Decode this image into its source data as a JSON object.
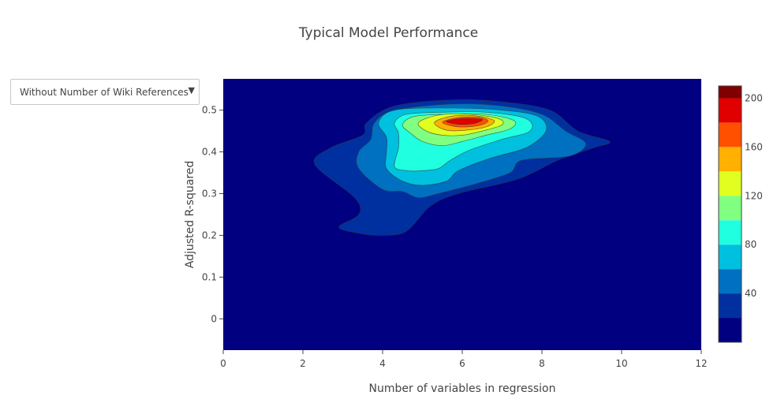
{
  "title": "Typical Model Performance",
  "dropdown": {
    "selected": "Without Number of Wiki References",
    "caret": "▼",
    "icon": "caret-down-icon"
  },
  "chart_data": {
    "type": "contour",
    "title": "Typical Model Performance",
    "xlabel": "Number of variables in regression",
    "ylabel": "Adjusted R-squared",
    "xlim": [
      0,
      12
    ],
    "ylim": [
      -0.075,
      0.575
    ],
    "x_ticks": [
      "0",
      "2",
      "4",
      "6",
      "8",
      "10",
      "12"
    ],
    "y_ticks": [
      "0",
      "0.1",
      "0.2",
      "0.3",
      "0.4",
      "0.5"
    ],
    "x_tick_values": [
      0,
      2,
      4,
      6,
      8,
      10,
      12
    ],
    "y_tick_values": [
      0,
      0.1,
      0.2,
      0.3,
      0.4,
      0.5
    ],
    "colorscale": "Jet",
    "colorbar": {
      "ticks": [
        "40",
        "80",
        "120",
        "160",
        "200"
      ],
      "tick_values": [
        40,
        80,
        120,
        160,
        200
      ],
      "range": [
        0,
        210
      ],
      "levels": [
        0,
        20,
        40,
        60,
        80,
        100,
        120,
        140,
        160,
        180,
        200,
        210
      ],
      "colors": [
        "#000080",
        "#0030a0",
        "#0070c0",
        "#00c0e0",
        "#20ffe0",
        "#80ff80",
        "#e0ff20",
        "#ffb000",
        "#ff5000",
        "#e00000",
        "#800000"
      ]
    },
    "contours": [
      {
        "level": 20,
        "color": "#0030a0",
        "points": [
          [
            2.9,
            0.22
          ],
          [
            3.4,
            0.25
          ],
          [
            3.3,
            0.29
          ],
          [
            2.3,
            0.37
          ],
          [
            2.7,
            0.41
          ],
          [
            3.5,
            0.44
          ],
          [
            3.6,
            0.47
          ],
          [
            4.3,
            0.51
          ],
          [
            5.8,
            0.525
          ],
          [
            7,
            0.52
          ],
          [
            8.2,
            0.5
          ],
          [
            8.9,
            0.45
          ],
          [
            9.7,
            0.425
          ],
          [
            9.3,
            0.41
          ],
          [
            8.4,
            0.38
          ],
          [
            7.4,
            0.335
          ],
          [
            5.9,
            0.3
          ],
          [
            5.2,
            0.27
          ],
          [
            4.6,
            0.21
          ],
          [
            4,
            0.2
          ],
          [
            3.4,
            0.205
          ]
        ]
      },
      {
        "level": 40,
        "color": "#0070c0",
        "points": [
          [
            3.4,
            0.36
          ],
          [
            3.4,
            0.4
          ],
          [
            3.7,
            0.43
          ],
          [
            3.8,
            0.47
          ],
          [
            4.3,
            0.5
          ],
          [
            5.8,
            0.515
          ],
          [
            7,
            0.51
          ],
          [
            8,
            0.49
          ],
          [
            8.6,
            0.45
          ],
          [
            9.1,
            0.42
          ],
          [
            8.7,
            0.39
          ],
          [
            7.5,
            0.38
          ],
          [
            7.2,
            0.35
          ],
          [
            6.4,
            0.325
          ],
          [
            5.4,
            0.3
          ],
          [
            4.9,
            0.29
          ],
          [
            4.5,
            0.305
          ],
          [
            4,
            0.31
          ]
        ]
      },
      {
        "level": 60,
        "color": "#00c0e0",
        "points": [
          [
            4.1,
            0.36
          ],
          [
            4.1,
            0.4
          ],
          [
            4.1,
            0.435
          ],
          [
            3.9,
            0.47
          ],
          [
            4.3,
            0.5
          ],
          [
            5.6,
            0.505
          ],
          [
            7,
            0.5
          ],
          [
            7.9,
            0.485
          ],
          [
            8.1,
            0.45
          ],
          [
            7.6,
            0.41
          ],
          [
            6.7,
            0.385
          ],
          [
            5.9,
            0.355
          ],
          [
            5.6,
            0.33
          ],
          [
            5,
            0.32
          ],
          [
            4.5,
            0.33
          ]
        ]
      },
      {
        "level": 80,
        "color": "#20ffe0",
        "points": [
          [
            4.3,
            0.365
          ],
          [
            4.4,
            0.41
          ],
          [
            4.4,
            0.445
          ],
          [
            4.3,
            0.47
          ],
          [
            4.6,
            0.49
          ],
          [
            5.5,
            0.495
          ],
          [
            6.6,
            0.495
          ],
          [
            7.6,
            0.48
          ],
          [
            7.7,
            0.45
          ],
          [
            7,
            0.43
          ],
          [
            6.2,
            0.405
          ],
          [
            5.7,
            0.38
          ],
          [
            5.4,
            0.36
          ],
          [
            5,
            0.355
          ],
          [
            4.6,
            0.355
          ]
        ]
      },
      {
        "level": 100,
        "color": "#80ff80",
        "points": [
          [
            4.5,
            0.465
          ],
          [
            4.8,
            0.485
          ],
          [
            5.6,
            0.49
          ],
          [
            6.6,
            0.49
          ],
          [
            7.3,
            0.475
          ],
          [
            7.2,
            0.455
          ],
          [
            6.6,
            0.44
          ],
          [
            6,
            0.425
          ],
          [
            5.5,
            0.415
          ],
          [
            5,
            0.425
          ],
          [
            4.7,
            0.445
          ]
        ]
      },
      {
        "level": 120,
        "color": "#e0ff20",
        "points": [
          [
            4.9,
            0.47
          ],
          [
            5.4,
            0.488
          ],
          [
            6.2,
            0.49
          ],
          [
            6.9,
            0.48
          ],
          [
            7,
            0.465
          ],
          [
            6.5,
            0.45
          ],
          [
            6,
            0.44
          ],
          [
            5.5,
            0.44
          ],
          [
            5.1,
            0.45
          ]
        ]
      },
      {
        "level": 140,
        "color": "#ffb000",
        "points": [
          [
            5.3,
            0.47
          ],
          [
            5.7,
            0.485
          ],
          [
            6.3,
            0.487
          ],
          [
            6.8,
            0.475
          ],
          [
            6.6,
            0.46
          ],
          [
            6.1,
            0.452
          ],
          [
            5.6,
            0.452
          ]
        ]
      },
      {
        "level": 160,
        "color": "#ff5000",
        "points": [
          [
            5.5,
            0.471
          ],
          [
            5.9,
            0.482
          ],
          [
            6.4,
            0.483
          ],
          [
            6.65,
            0.474
          ],
          [
            6.4,
            0.463
          ],
          [
            5.9,
            0.46
          ]
        ]
      },
      {
        "level": 180,
        "color": "#e00000",
        "points": [
          [
            5.6,
            0.473
          ],
          [
            6,
            0.48
          ],
          [
            6.5,
            0.478
          ],
          [
            6.3,
            0.468
          ],
          [
            5.9,
            0.466
          ]
        ]
      }
    ]
  }
}
